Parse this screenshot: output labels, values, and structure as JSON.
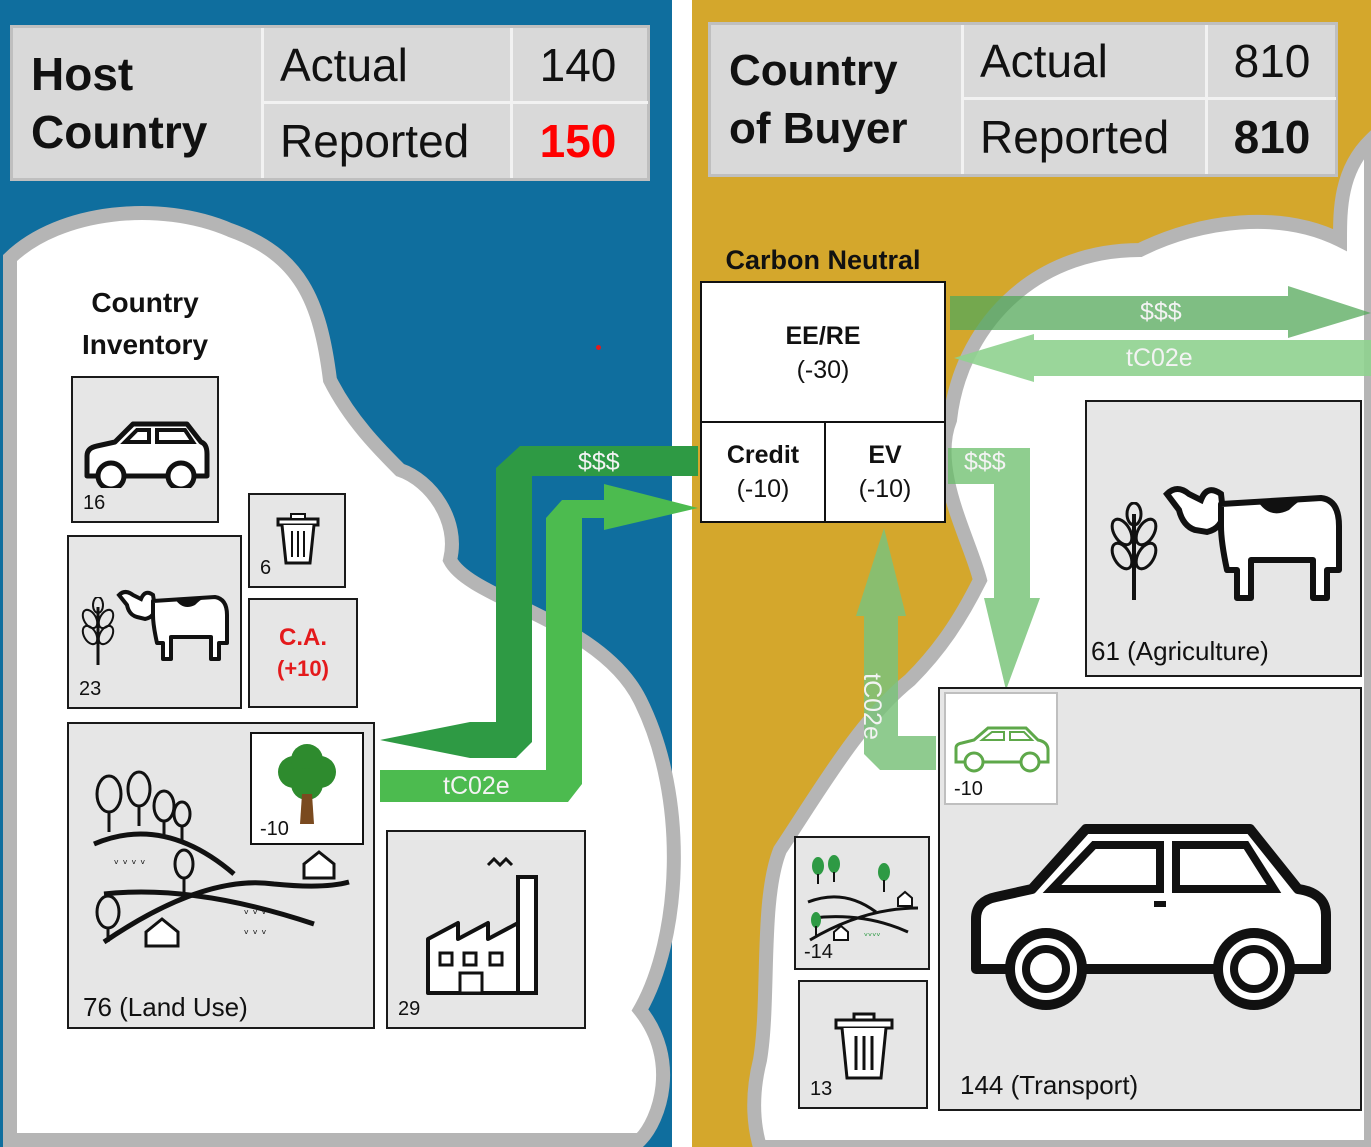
{
  "host": {
    "title_line1": "Host",
    "title_line2": "Country",
    "actual_label": "Actual",
    "actual_value": "140",
    "reported_label": "Reported",
    "reported_value": "150",
    "reported_color": "#ff0000"
  },
  "buyer": {
    "title_line1": "Country",
    "title_line2": "of Buyer",
    "actual_label": "Actual",
    "actual_value": "810",
    "reported_label": "Reported",
    "reported_value": "810"
  },
  "inventory": {
    "title_line1": "Country",
    "title_line2": "Inventory",
    "car": "16",
    "trash": "6",
    "agriculture": "23",
    "ca_line1": "C.A.",
    "ca_line2": "(+10)",
    "land_use": "76 (Land Use)",
    "tree": "-10",
    "industry": "29"
  },
  "flows": {
    "money": "$$$",
    "carbon": "tC02e"
  },
  "carbon_neutral": {
    "title": "Carbon Neutral",
    "eere_label": "EE/RE",
    "eere_value": "(-30)",
    "credit_label": "Credit",
    "credit_value": "(-10)",
    "ev_label": "EV",
    "ev_value": "(-10)"
  },
  "buyer_inventory": {
    "agriculture": "61 (Agriculture)",
    "ev": "-10",
    "land": "-14",
    "trash": "13",
    "transport": "144 (Transport)"
  },
  "colors": {
    "host_bg": "#0f6e9e",
    "buyer_bg": "#d4a72c",
    "dark_green": "#2e9a44",
    "light_green": "#4cbb4f",
    "pale_green": "#8fd18f",
    "tree_green": "#2e8b2e",
    "trunk_brown": "#7a4a1f"
  }
}
